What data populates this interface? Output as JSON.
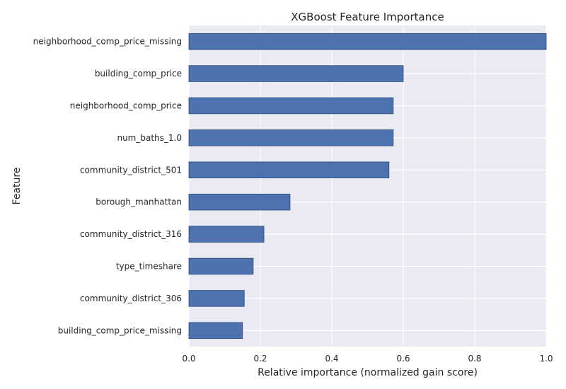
{
  "chart_data": {
    "type": "bar",
    "orientation": "horizontal",
    "title": "XGBoost Feature Importance",
    "xlabel": "Relative importance (normalized gain score)",
    "ylabel": "Feature",
    "xlim": [
      0.0,
      1.0
    ],
    "xticks": [
      "0.0",
      "0.2",
      "0.4",
      "0.6",
      "0.8",
      "1.0"
    ],
    "grid": true,
    "bar_color": "#4c72b0",
    "plot_background": "#eaeaf2",
    "grid_color": "#ffffff",
    "categories": [
      "neighborhood_comp_price_missing",
      "building_comp_price",
      "neighborhood_comp_price",
      "num_baths_1.0",
      "community_district_501",
      "borough_manhattan",
      "community_district_316",
      "type_timeshare",
      "community_district_306",
      "building_comp_price_missing"
    ],
    "values": [
      1.0,
      0.6,
      0.572,
      0.572,
      0.56,
      0.283,
      0.21,
      0.18,
      0.155,
      0.15
    ]
  }
}
